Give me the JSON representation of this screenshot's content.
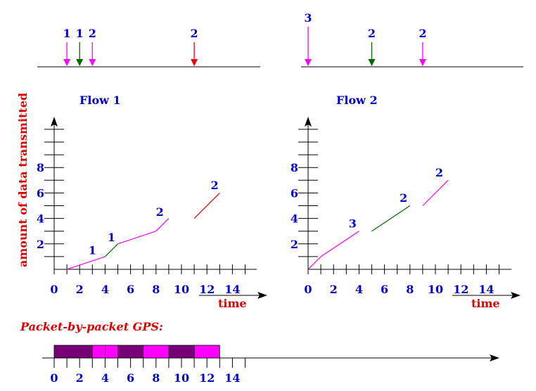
{
  "colors": {
    "magenta": "#ff00ff",
    "green": "#006600",
    "red": "#ee0000",
    "blue": "#0000cc",
    "purple": "#770077",
    "axis": "#000000"
  },
  "top_timelines": {
    "left": {
      "arrows": [
        {
          "t": 1,
          "label": "1",
          "color": "magenta"
        },
        {
          "t": 2,
          "label": "1",
          "color": "green"
        },
        {
          "t": 3,
          "label": "2",
          "color": "magenta"
        },
        {
          "t": 11,
          "label": "2",
          "color": "red"
        }
      ]
    },
    "right": {
      "arrows": [
        {
          "t": 0,
          "label": "3",
          "color": "magenta"
        },
        {
          "t": 5,
          "label": "2",
          "color": "green"
        },
        {
          "t": 9,
          "label": "2",
          "color": "magenta"
        }
      ]
    }
  },
  "flow1": {
    "title": "Flow 1",
    "ylabel": "amount of data transmitted",
    "xlabel": "time",
    "x_ticks": [
      "0",
      "2",
      "4",
      "6",
      "8",
      "10",
      "12",
      "14"
    ],
    "y_ticks": [
      "2",
      "4",
      "6",
      "8"
    ],
    "segments": [
      {
        "x": [
          1,
          4
        ],
        "y": [
          0,
          1
        ],
        "color": "magenta"
      },
      {
        "x": [
          4,
          5
        ],
        "y": [
          1,
          2
        ],
        "color": "green"
      },
      {
        "x": [
          5,
          8
        ],
        "y": [
          2,
          3
        ],
        "color": "magenta"
      },
      {
        "x": [
          8,
          9
        ],
        "y": [
          3,
          4
        ],
        "color": "magenta"
      },
      {
        "x": [
          11,
          13
        ],
        "y": [
          4,
          6
        ],
        "color": "red"
      }
    ],
    "annotations": [
      {
        "text": "1",
        "x": 3,
        "y": 1.2
      },
      {
        "text": "1",
        "x": 4.5,
        "y": 2.2
      },
      {
        "text": "2",
        "x": 8.3,
        "y": 4.2
      },
      {
        "text": "2",
        "x": 12.6,
        "y": 6.3
      }
    ]
  },
  "flow2": {
    "title": "Flow 2",
    "xlabel": "time",
    "x_ticks": [
      "0",
      "2",
      "4",
      "6",
      "8",
      "10",
      "12",
      "14"
    ],
    "y_ticks": [
      "2",
      "4",
      "6",
      "8"
    ],
    "segments": [
      {
        "x": [
          0,
          1
        ],
        "y": [
          0,
          1
        ],
        "color": "magenta"
      },
      {
        "x": [
          1,
          4
        ],
        "y": [
          1,
          3
        ],
        "color": "magenta"
      },
      {
        "x": [
          5,
          8
        ],
        "y": [
          3,
          5
        ],
        "color": "green"
      },
      {
        "x": [
          9,
          11
        ],
        "y": [
          5,
          7
        ],
        "color": "magenta"
      }
    ],
    "annotations": [
      {
        "text": "3",
        "x": 3.5,
        "y": 3.3
      },
      {
        "text": "2",
        "x": 7.5,
        "y": 5.3
      },
      {
        "text": "2",
        "x": 10.3,
        "y": 7.3
      }
    ]
  },
  "gps": {
    "title": "Packet-by-packet GPS:",
    "x_ticks": [
      "0",
      "2",
      "4",
      "6",
      "8",
      "10",
      "12",
      "14"
    ],
    "blocks": [
      {
        "start": 0,
        "end": 3,
        "color": "purple"
      },
      {
        "start": 3,
        "end": 4,
        "color": "magenta"
      },
      {
        "start": 4,
        "end": 5,
        "color": "magenta"
      },
      {
        "start": 5,
        "end": 7,
        "color": "purple"
      },
      {
        "start": 7,
        "end": 9,
        "color": "magenta"
      },
      {
        "start": 9,
        "end": 11,
        "color": "purple"
      },
      {
        "start": 11,
        "end": 13,
        "color": "magenta"
      }
    ]
  }
}
